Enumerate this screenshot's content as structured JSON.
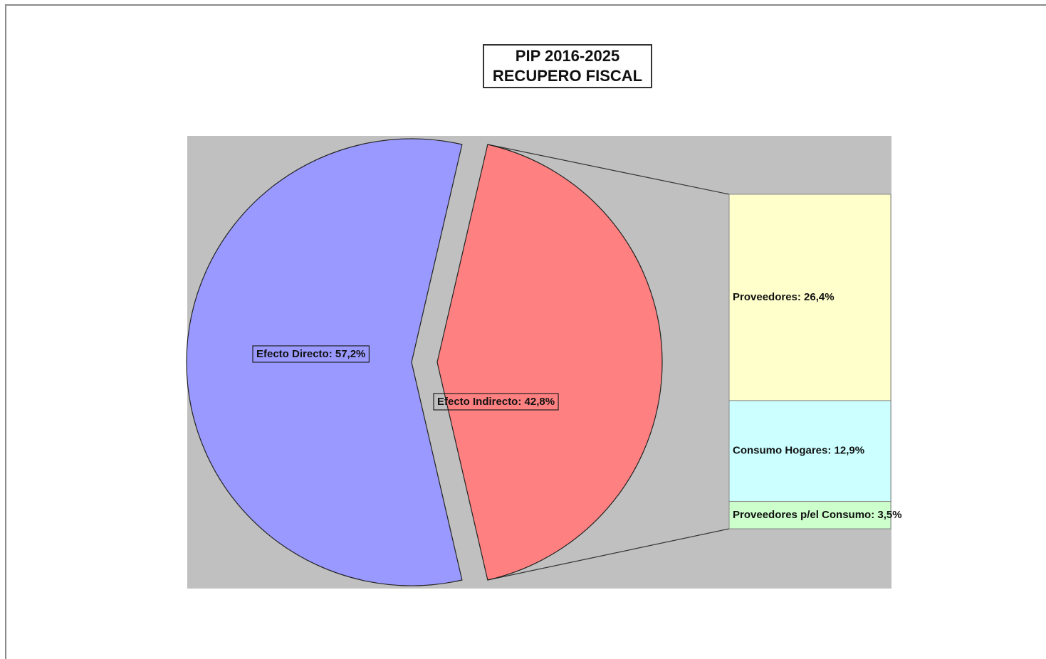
{
  "chart_data": {
    "type": "pie",
    "title": [
      "PIP 2016-2025",
      "RECUPERO FISCAL"
    ],
    "slices": [
      {
        "label": "Efecto Directo: 57,2%",
        "value": 57.2,
        "color": "#9999ff"
      },
      {
        "label": "Efecto Indirecto: 42,8%",
        "value": 42.8,
        "color": "#ff8080"
      }
    ],
    "breakdown_of": "Efecto Indirecto: 42,8%",
    "breakdown": [
      {
        "label": "Proveedores: 26,4%",
        "value": 26.4,
        "color": "#ffffcc"
      },
      {
        "label": "Consumo  Hogares:  12,9%",
        "value": 12.9,
        "color": "#ccffff"
      },
      {
        "label": "Proveedores p/el Consumo: 3,5%",
        "value": 3.5,
        "color": "#ccffcc"
      }
    ],
    "plot_background": "#c0c0c0",
    "legend": "none"
  }
}
